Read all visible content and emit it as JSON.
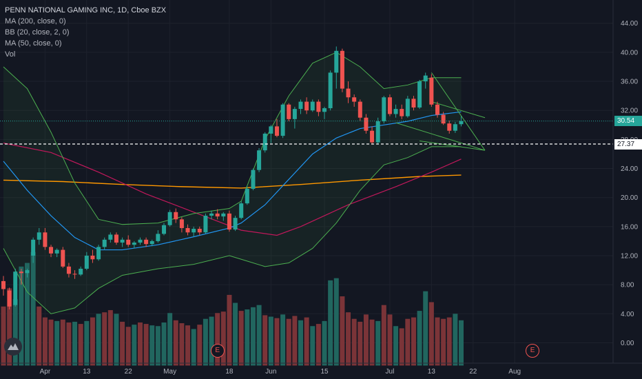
{
  "chart_data": {
    "type": "candlestick",
    "symbol_title": "PENN NATIONAL GAMING INC, 1D, Cboe BZX",
    "indicators": [
      "MA (200, close, 0)",
      "BB (20, close, 2, 0)",
      "MA (50, close, 0)",
      "Vol"
    ],
    "y_ticks": [
      "44.00",
      "40.00",
      "36.00",
      "32.00",
      "28.00",
      "24.00",
      "20.00",
      "16.00",
      "12.00",
      "8.00",
      "4.00",
      "0.00"
    ],
    "y_tick_values": [
      44,
      40,
      36,
      32,
      28,
      24,
      20,
      16,
      12,
      8,
      4,
      0
    ],
    "ylim": [
      -2.8,
      47.2
    ],
    "x_ticks": [
      "Apr",
      "13",
      "22",
      "May",
      "18",
      "Jun",
      "15",
      "Jul",
      "13",
      "22",
      "Aug"
    ],
    "x_tick_index": [
      7,
      14,
      21,
      28,
      38,
      45,
      54,
      65,
      72,
      79,
      86
    ],
    "last_price": "30.54",
    "last_price_value": 30.54,
    "level_price": "27.37",
    "level_price_value": 27.37,
    "candles": [
      [
        8.5,
        9.2,
        6.5,
        7.4
      ],
      [
        7.2,
        7.6,
        4.6,
        5.0
      ],
      [
        5.2,
        10.2,
        5.0,
        9.8
      ],
      [
        9.8,
        10.2,
        8.0,
        9.6
      ],
      [
        9.6,
        10.2,
        9.0,
        10.0
      ],
      [
        12.0,
        14.5,
        11.0,
        14.2
      ],
      [
        14.2,
        15.8,
        13.5,
        15.2
      ],
      [
        15.2,
        15.8,
        12.8,
        13.2
      ],
      [
        13.2,
        13.5,
        11.8,
        12.3
      ],
      [
        12.3,
        13.0,
        11.8,
        12.8
      ],
      [
        12.8,
        13.2,
        10.3,
        10.5
      ],
      [
        10.5,
        11.0,
        9.0,
        9.5
      ],
      [
        9.5,
        10.0,
        8.8,
        9.4
      ],
      [
        9.4,
        10.5,
        9.2,
        10.2
      ],
      [
        10.2,
        12.5,
        10.0,
        12.0
      ],
      [
        12.0,
        12.8,
        11.0,
        11.5
      ],
      [
        11.5,
        13.5,
        11.3,
        13.2
      ],
      [
        13.2,
        14.5,
        12.8,
        14.2
      ],
      [
        14.2,
        15.2,
        13.8,
        14.9
      ],
      [
        14.9,
        15.2,
        13.5,
        13.8
      ],
      [
        13.8,
        14.5,
        13.2,
        14.2
      ],
      [
        14.2,
        14.8,
        13.2,
        13.5
      ],
      [
        13.5,
        14.0,
        13.0,
        13.8
      ],
      [
        13.8,
        14.5,
        13.5,
        14.2
      ],
      [
        14.2,
        14.5,
        13.2,
        13.6
      ],
      [
        13.6,
        14.2,
        13.3,
        14.0
      ],
      [
        14.0,
        15.5,
        13.8,
        15.0
      ],
      [
        15.0,
        16.5,
        14.8,
        16.2
      ],
      [
        16.2,
        18.3,
        16.0,
        18.0
      ],
      [
        18.0,
        18.5,
        16.5,
        17.0
      ],
      [
        17.0,
        17.3,
        15.2,
        15.8
      ],
      [
        15.8,
        16.3,
        14.8,
        15.2
      ],
      [
        15.2,
        16.0,
        14.6,
        15.7
      ],
      [
        15.7,
        16.0,
        14.8,
        15.2
      ],
      [
        15.2,
        17.8,
        15.0,
        17.5
      ],
      [
        17.5,
        18.2,
        17.0,
        17.8
      ],
      [
        17.8,
        18.4,
        17.0,
        17.4
      ],
      [
        17.4,
        18.0,
        16.8,
        17.8
      ],
      [
        17.8,
        18.2,
        15.3,
        15.6
      ],
      [
        15.6,
        17.5,
        15.4,
        17.2
      ],
      [
        17.2,
        19.5,
        17.0,
        19.2
      ],
      [
        19.2,
        21.5,
        19.0,
        21.2
      ],
      [
        21.2,
        24.0,
        21.0,
        23.8
      ],
      [
        23.8,
        26.8,
        23.5,
        26.5
      ],
      [
        26.5,
        29.0,
        26.2,
        28.8
      ],
      [
        28.8,
        30.0,
        27.5,
        29.8
      ],
      [
        29.8,
        30.8,
        28.3,
        28.5
      ],
      [
        28.5,
        33.0,
        28.2,
        32.8
      ],
      [
        32.8,
        33.0,
        30.5,
        30.8
      ],
      [
        30.8,
        32.5,
        29.5,
        32.2
      ],
      [
        32.2,
        33.5,
        31.5,
        33.2
      ],
      [
        33.2,
        33.8,
        31.5,
        32.0
      ],
      [
        32.0,
        33.5,
        31.8,
        33.2
      ],
      [
        33.2,
        33.5,
        31.2,
        31.8
      ],
      [
        31.8,
        32.5,
        30.8,
        32.3
      ],
      [
        32.3,
        37.5,
        32.0,
        37.2
      ],
      [
        37.2,
        40.8,
        35.0,
        40.2
      ],
      [
        40.2,
        40.5,
        34.5,
        35.0
      ],
      [
        35.0,
        36.0,
        33.0,
        33.8
      ],
      [
        33.8,
        34.2,
        32.5,
        33.2
      ],
      [
        33.2,
        33.5,
        30.5,
        31.0
      ],
      [
        31.0,
        31.5,
        28.8,
        29.2
      ],
      [
        29.2,
        29.8,
        27.3,
        27.6
      ],
      [
        27.6,
        31.0,
        27.3,
        30.5
      ],
      [
        30.5,
        34.0,
        30.2,
        33.8
      ],
      [
        33.8,
        34.2,
        31.2,
        31.5
      ],
      [
        31.5,
        32.8,
        31.0,
        32.2
      ],
      [
        32.2,
        32.8,
        30.8,
        31.2
      ],
      [
        31.2,
        34.0,
        31.0,
        33.6
      ],
      [
        33.6,
        34.0,
        32.0,
        32.4
      ],
      [
        32.4,
        36.2,
        32.2,
        36.0
      ],
      [
        36.0,
        37.2,
        35.0,
        36.8
      ],
      [
        36.5,
        37.0,
        32.5,
        32.8
      ],
      [
        32.8,
        33.2,
        31.0,
        31.4
      ],
      [
        31.4,
        31.8,
        30.0,
        30.2
      ],
      [
        30.2,
        30.6,
        28.8,
        29.2
      ],
      [
        29.2,
        30.4,
        28.9,
        30.1
      ],
      [
        30.1,
        31.2,
        29.8,
        30.54
      ]
    ],
    "volumes": [
      [
        5.0,
        1
      ],
      [
        7.5,
        1
      ],
      [
        6.0,
        0
      ],
      [
        10.5,
        0
      ],
      [
        11.0,
        0
      ],
      [
        12.5,
        0
      ],
      [
        5.0,
        1
      ],
      [
        3.5,
        1
      ],
      [
        3.2,
        1
      ],
      [
        3.0,
        0
      ],
      [
        3.2,
        1
      ],
      [
        2.8,
        1
      ],
      [
        2.9,
        0
      ],
      [
        2.6,
        1
      ],
      [
        3.0,
        0
      ],
      [
        3.5,
        1
      ],
      [
        4.0,
        0
      ],
      [
        4.2,
        1
      ],
      [
        4.5,
        1
      ],
      [
        4.0,
        0
      ],
      [
        2.9,
        1
      ],
      [
        2.2,
        1
      ],
      [
        2.5,
        0
      ],
      [
        2.8,
        1
      ],
      [
        2.6,
        1
      ],
      [
        2.4,
        0
      ],
      [
        2.3,
        0
      ],
      [
        2.8,
        0
      ],
      [
        4.1,
        0
      ],
      [
        3.1,
        1
      ],
      [
        2.7,
        1
      ],
      [
        2.4,
        1
      ],
      [
        1.9,
        0
      ],
      [
        2.5,
        1
      ],
      [
        3.3,
        0
      ],
      [
        3.6,
        0
      ],
      [
        4.1,
        1
      ],
      [
        4.3,
        1
      ],
      [
        6.6,
        1
      ],
      [
        5.5,
        0
      ],
      [
        4.4,
        1
      ],
      [
        4.6,
        0
      ],
      [
        4.9,
        0
      ],
      [
        5.2,
        0
      ],
      [
        3.8,
        1
      ],
      [
        3.6,
        0
      ],
      [
        3.4,
        1
      ],
      [
        3.9,
        0
      ],
      [
        3.3,
        1
      ],
      [
        3.7,
        1
      ],
      [
        3.1,
        0
      ],
      [
        3.5,
        1
      ],
      [
        2.3,
        0
      ],
      [
        2.6,
        1
      ],
      [
        3.0,
        0
      ],
      [
        8.6,
        0
      ],
      [
        8.9,
        0
      ],
      [
        6.4,
        1
      ],
      [
        4.2,
        1
      ],
      [
        3.3,
        1
      ],
      [
        2.9,
        1
      ],
      [
        3.9,
        1
      ],
      [
        3.2,
        1
      ],
      [
        3.0,
        0
      ],
      [
        5.2,
        1
      ],
      [
        3.9,
        1
      ],
      [
        2.3,
        0
      ],
      [
        2.0,
        1
      ],
      [
        3.3,
        1
      ],
      [
        3.5,
        1
      ],
      [
        4.4,
        0
      ],
      [
        7.1,
        0
      ],
      [
        5.6,
        1
      ],
      [
        3.5,
        1
      ],
      [
        3.3,
        1
      ],
      [
        3.5,
        1
      ],
      [
        4.0,
        0
      ],
      [
        3.1,
        0
      ]
    ],
    "ma200": [
      [
        0,
        22.4
      ],
      [
        10,
        22.2
      ],
      [
        20,
        21.8
      ],
      [
        30,
        21.5
      ],
      [
        40,
        21.3
      ],
      [
        50,
        21.8
      ],
      [
        60,
        22.4
      ],
      [
        70,
        22.9
      ],
      [
        77,
        23.1
      ]
    ],
    "ma50": [
      [
        0,
        27.5
      ],
      [
        8,
        26.2
      ],
      [
        16,
        23.5
      ],
      [
        24,
        20.5
      ],
      [
        32,
        18.0
      ],
      [
        40,
        15.5
      ],
      [
        46,
        14.8
      ],
      [
        50,
        16.0
      ],
      [
        58,
        19.0
      ],
      [
        66,
        21.5
      ],
      [
        72,
        23.5
      ],
      [
        77,
        25.3
      ]
    ],
    "bb_basis": [
      [
        0,
        25.0
      ],
      [
        4,
        21.0
      ],
      [
        8,
        17.5
      ],
      [
        12,
        14.5
      ],
      [
        16,
        12.8
      ],
      [
        20,
        12.8
      ],
      [
        26,
        13.5
      ],
      [
        32,
        14.6
      ],
      [
        38,
        15.8
      ],
      [
        40,
        16.5
      ],
      [
        44,
        19.0
      ],
      [
        48,
        22.5
      ],
      [
        52,
        26.0
      ],
      [
        56,
        28.2
      ],
      [
        60,
        29.5
      ],
      [
        64,
        30.0
      ],
      [
        68,
        30.5
      ],
      [
        72,
        31.3
      ],
      [
        77,
        31.8
      ]
    ],
    "bb_upper": [
      [
        0,
        38.0
      ],
      [
        4,
        35.0
      ],
      [
        8,
        29.0
      ],
      [
        12,
        22.0
      ],
      [
        16,
        17.0
      ],
      [
        20,
        16.3
      ],
      [
        26,
        16.5
      ],
      [
        32,
        17.8
      ],
      [
        38,
        18.5
      ],
      [
        40,
        19.5
      ],
      [
        44,
        28.0
      ],
      [
        48,
        34.0
      ],
      [
        52,
        38.5
      ],
      [
        56,
        40.0
      ],
      [
        60,
        38.0
      ],
      [
        64,
        35.0
      ],
      [
        68,
        35.5
      ],
      [
        72,
        36.5
      ],
      [
        77,
        36.5
      ]
    ],
    "bb_lower": [
      [
        0,
        13.0
      ],
      [
        4,
        7.0
      ],
      [
        8,
        4.0
      ],
      [
        12,
        4.8
      ],
      [
        16,
        7.5
      ],
      [
        20,
        9.3
      ],
      [
        26,
        10.2
      ],
      [
        32,
        10.8
      ],
      [
        38,
        12.0
      ],
      [
        40,
        11.5
      ],
      [
        44,
        10.5
      ],
      [
        48,
        11.0
      ],
      [
        52,
        13.0
      ],
      [
        56,
        16.5
      ],
      [
        60,
        21.0
      ],
      [
        64,
        24.5
      ],
      [
        68,
        25.5
      ],
      [
        72,
        27.0
      ],
      [
        77,
        27.0
      ]
    ],
    "wedge_lines": [
      [
        [
          72,
          37.2
        ],
        [
          81,
          26.5
        ]
      ],
      [
        [
          72,
          33.2
        ],
        [
          81,
          31.0
        ]
      ],
      [
        [
          66,
          30.3
        ],
        [
          81,
          26.5
        ]
      ],
      [
        [
          70,
          27.8
        ],
        [
          81,
          26.5
        ]
      ]
    ],
    "earnings_markers": [
      {
        "label": "E",
        "index": 36
      },
      {
        "label": "E",
        "index": 89
      }
    ],
    "colors": {
      "up": "#26a69a",
      "down": "#ef5350",
      "vol_up": "#21665f",
      "vol_down": "#7b3438",
      "ma200": "#ff9800",
      "ma50": "#c2185b",
      "bb_basis": "#2196f3",
      "bb_band": "#4caf50",
      "last_price": "#26a69a",
      "level": "#ffffff",
      "wedge": "#4caf50"
    }
  }
}
